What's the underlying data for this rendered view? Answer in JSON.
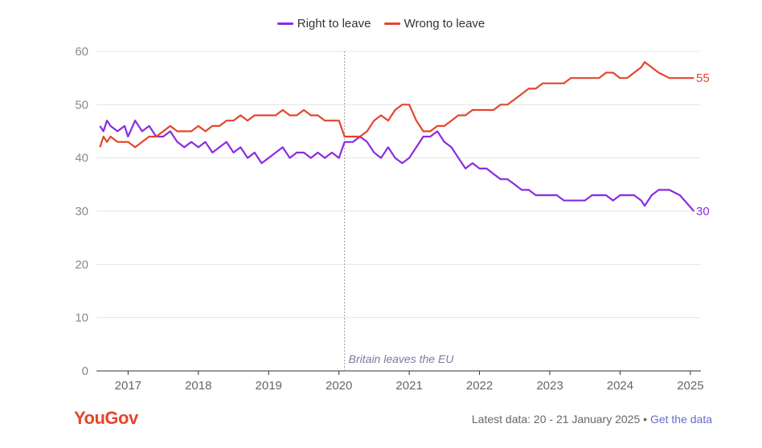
{
  "legend": {
    "right_label": "Right to leave",
    "wrong_label": "Wrong to leave"
  },
  "footer": {
    "logo_text": "YouGov",
    "latest_data": "Latest data: 20 - 21 January 2025",
    "separator": "•",
    "link_text": "Get the data"
  },
  "chart_data": {
    "type": "line",
    "ylim": [
      0,
      60
    ],
    "yticks": [
      0,
      10,
      20,
      30,
      40,
      50,
      60
    ],
    "xlim": [
      2016.55,
      2025.15
    ],
    "xticks": [
      "2017",
      "2018",
      "2019",
      "2020",
      "2021",
      "2022",
      "2023",
      "2024",
      "2025"
    ],
    "annotations": [
      {
        "x": 2020.08,
        "text": "Britain leaves the EU"
      }
    ],
    "end_labels": {
      "right": "30",
      "wrong": "55"
    },
    "colors": {
      "right": "#8a2be2",
      "wrong": "#e5452b"
    },
    "series": [
      {
        "name": "Right to leave",
        "key": "right",
        "x": [
          2016.6,
          2016.65,
          2016.7,
          2016.75,
          2016.85,
          2016.95,
          2017.0,
          2017.1,
          2017.2,
          2017.3,
          2017.4,
          2017.5,
          2017.6,
          2017.7,
          2017.8,
          2017.9,
          2018.0,
          2018.1,
          2018.2,
          2018.3,
          2018.4,
          2018.5,
          2018.6,
          2018.7,
          2018.8,
          2018.9,
          2019.0,
          2019.1,
          2019.2,
          2019.3,
          2019.4,
          2019.5,
          2019.6,
          2019.7,
          2019.8,
          2019.9,
          2020.0,
          2020.08,
          2020.2,
          2020.3,
          2020.4,
          2020.5,
          2020.6,
          2020.7,
          2020.8,
          2020.9,
          2021.0,
          2021.1,
          2021.2,
          2021.3,
          2021.4,
          2021.5,
          2021.6,
          2021.7,
          2021.8,
          2021.9,
          2022.0,
          2022.1,
          2022.2,
          2022.3,
          2022.4,
          2022.5,
          2022.6,
          2022.7,
          2022.8,
          2022.9,
          2023.0,
          2023.1,
          2023.2,
          2023.3,
          2023.4,
          2023.5,
          2023.6,
          2023.7,
          2023.8,
          2023.9,
          2024.0,
          2024.1,
          2024.2,
          2024.3,
          2024.35,
          2024.45,
          2024.55,
          2024.7,
          2024.85,
          2025.05
        ],
        "values": [
          46,
          45,
          47,
          46,
          45,
          46,
          44,
          47,
          45,
          46,
          44,
          44,
          45,
          43,
          42,
          43,
          42,
          43,
          41,
          42,
          43,
          41,
          42,
          40,
          41,
          39,
          40,
          41,
          42,
          40,
          41,
          41,
          40,
          41,
          40,
          41,
          40,
          43,
          43,
          44,
          43,
          41,
          40,
          42,
          40,
          39,
          40,
          42,
          44,
          44,
          45,
          43,
          42,
          40,
          38,
          39,
          38,
          38,
          37,
          36,
          36,
          35,
          34,
          34,
          33,
          33,
          33,
          33,
          32,
          32,
          32,
          32,
          33,
          33,
          33,
          32,
          33,
          33,
          33,
          32,
          31,
          33,
          34,
          34,
          33,
          30
        ]
      },
      {
        "name": "Wrong to leave",
        "key": "wrong",
        "x": [
          2016.6,
          2016.65,
          2016.7,
          2016.75,
          2016.85,
          2016.95,
          2017.0,
          2017.1,
          2017.2,
          2017.3,
          2017.4,
          2017.5,
          2017.6,
          2017.7,
          2017.8,
          2017.9,
          2018.0,
          2018.1,
          2018.2,
          2018.3,
          2018.4,
          2018.5,
          2018.6,
          2018.7,
          2018.8,
          2018.9,
          2019.0,
          2019.1,
          2019.2,
          2019.3,
          2019.4,
          2019.5,
          2019.6,
          2019.7,
          2019.8,
          2019.9,
          2020.0,
          2020.08,
          2020.2,
          2020.3,
          2020.4,
          2020.5,
          2020.6,
          2020.7,
          2020.8,
          2020.9,
          2021.0,
          2021.1,
          2021.2,
          2021.3,
          2021.4,
          2021.5,
          2021.6,
          2021.7,
          2021.8,
          2021.9,
          2022.0,
          2022.1,
          2022.2,
          2022.3,
          2022.4,
          2022.5,
          2022.6,
          2022.7,
          2022.8,
          2022.9,
          2023.0,
          2023.1,
          2023.2,
          2023.3,
          2023.4,
          2023.5,
          2023.6,
          2023.7,
          2023.8,
          2023.9,
          2024.0,
          2024.1,
          2024.2,
          2024.3,
          2024.35,
          2024.45,
          2024.55,
          2024.7,
          2024.85,
          2025.05
        ],
        "values": [
          42,
          44,
          43,
          44,
          43,
          43,
          43,
          42,
          43,
          44,
          44,
          45,
          46,
          45,
          45,
          45,
          46,
          45,
          46,
          46,
          47,
          47,
          48,
          47,
          48,
          48,
          48,
          48,
          49,
          48,
          48,
          49,
          48,
          48,
          47,
          47,
          47,
          44,
          44,
          44,
          45,
          47,
          48,
          47,
          49,
          50,
          50,
          47,
          45,
          45,
          46,
          46,
          47,
          48,
          48,
          49,
          49,
          49,
          49,
          50,
          50,
          51,
          52,
          53,
          53,
          54,
          54,
          54,
          54,
          55,
          55,
          55,
          55,
          55,
          56,
          56,
          55,
          55,
          56,
          57,
          58,
          57,
          56,
          55,
          55,
          55
        ]
      }
    ]
  }
}
